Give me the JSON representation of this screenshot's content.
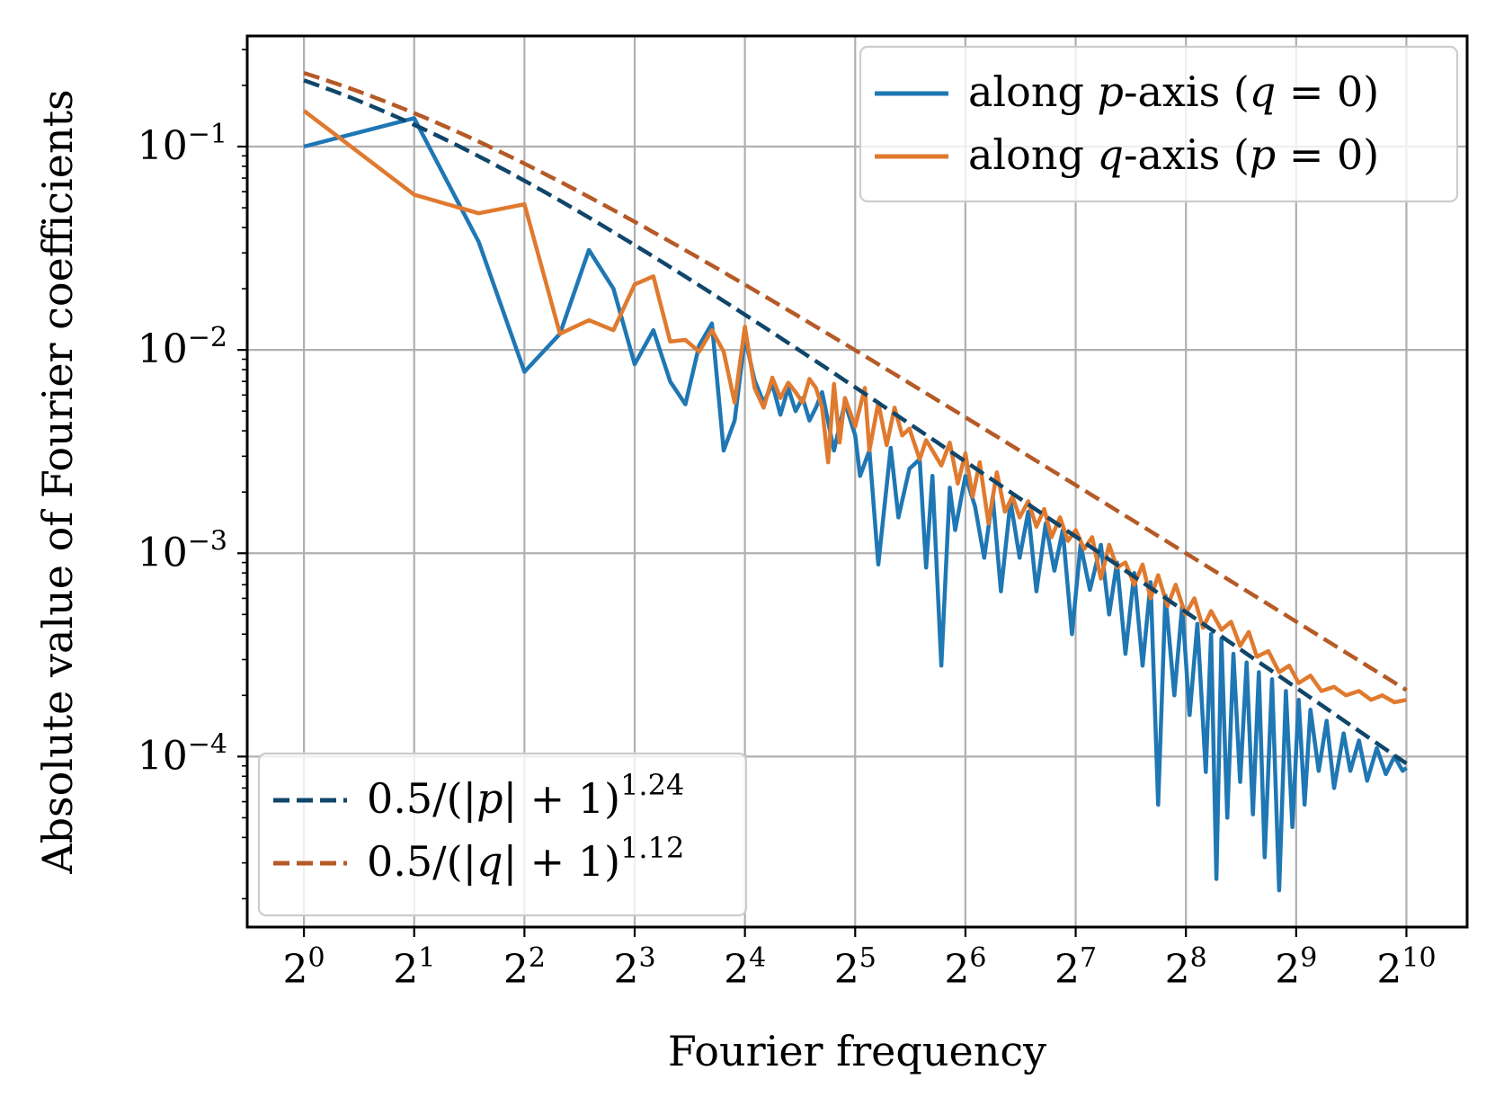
{
  "chart_data": {
    "type": "line",
    "xscale": "log2",
    "yscale": "log10",
    "xlabel": "Fourier frequency",
    "ylabel": "Absolute value of Fourier coefficients",
    "xlim": [
      0.7,
      1500
    ],
    "ylim": [
      1.45e-05,
      0.35
    ],
    "xticks": [
      {
        "base": "2",
        "exp": "0",
        "value": 1
      },
      {
        "base": "2",
        "exp": "1",
        "value": 2
      },
      {
        "base": "2",
        "exp": "2",
        "value": 4
      },
      {
        "base": "2",
        "exp": "3",
        "value": 8
      },
      {
        "base": "2",
        "exp": "4",
        "value": 16
      },
      {
        "base": "2",
        "exp": "5",
        "value": 32
      },
      {
        "base": "2",
        "exp": "6",
        "value": 64
      },
      {
        "base": "2",
        "exp": "7",
        "value": 128
      },
      {
        "base": "2",
        "exp": "8",
        "value": 256
      },
      {
        "base": "2",
        "exp": "9",
        "value": 512
      },
      {
        "base": "2",
        "exp": "10",
        "value": 1024
      }
    ],
    "yticks": [
      {
        "base": "10",
        "exp": "−1",
        "value": 0.1
      },
      {
        "base": "10",
        "exp": "−2",
        "value": 0.01
      },
      {
        "base": "10",
        "exp": "−3",
        "value": 0.001
      },
      {
        "base": "10",
        "exp": "−4",
        "value": 0.0001
      }
    ],
    "grid": true,
    "colors": {
      "blue": "#1f77b4",
      "orange": "#e07a2f",
      "navy": "#10466a",
      "brown": "#b65a26",
      "grid": "#b0b0b0"
    },
    "legends": [
      {
        "placement": "upper right",
        "entries": [
          {
            "text": "along p-axis (q = 0)",
            "parts": [
              "along ",
              "p",
              "-axis (",
              "q",
              " = 0)"
            ],
            "color": "#1f77b4",
            "style": "solid"
          },
          {
            "text": "along q-axis (p = 0)",
            "parts": [
              "along ",
              "q",
              "-axis (",
              "p",
              " = 0)"
            ],
            "color": "#e07a2f",
            "style": "solid"
          }
        ]
      },
      {
        "placement": "lower left",
        "entries": [
          {
            "text": "0.5/(|p| + 1)^1.24",
            "parts": [
              "0.5/(|",
              "p",
              "| + 1)"
            ],
            "sup": "1.24",
            "color": "#10466a",
            "style": "dashed"
          },
          {
            "text": "0.5/(|q| + 1)^1.12",
            "parts": [
              "0.5/(|",
              "q",
              "| + 1)"
            ],
            "sup": "1.12",
            "color": "#b65a26",
            "style": "dashed"
          }
        ]
      }
    ],
    "series": [
      {
        "name": "along p-axis (q = 0)",
        "color": "#1f77b4",
        "style": "solid",
        "points": [
          [
            1,
            0.1
          ],
          [
            2,
            0.138
          ],
          [
            3,
            0.034
          ],
          [
            4,
            0.0078
          ],
          [
            5,
            0.012
          ],
          [
            6,
            0.031
          ],
          [
            7,
            0.02
          ],
          [
            8,
            0.0085
          ],
          [
            9,
            0.0125
          ],
          [
            10,
            0.007
          ],
          [
            11,
            0.0054
          ],
          [
            12,
            0.0105
          ],
          [
            13,
            0.0135
          ],
          [
            14,
            0.0032
          ],
          [
            15,
            0.0045
          ],
          [
            16,
            0.0115
          ],
          [
            17,
            0.0071
          ],
          [
            18,
            0.0055
          ],
          [
            19,
            0.0068
          ],
          [
            20,
            0.0048
          ],
          [
            21,
            0.0065
          ],
          [
            22,
            0.005
          ],
          [
            23,
            0.0058
          ],
          [
            24,
            0.0045
          ],
          [
            25,
            0.0052
          ],
          [
            26,
            0.0062
          ],
          [
            28,
            0.0032
          ],
          [
            30,
            0.0055
          ],
          [
            32,
            0.0038
          ],
          [
            33,
            0.0024
          ],
          [
            35,
            0.0032
          ],
          [
            37,
            0.00088
          ],
          [
            40,
            0.0033
          ],
          [
            42,
            0.0015
          ],
          [
            45,
            0.0026
          ],
          [
            48,
            0.0029
          ],
          [
            50,
            0.00085
          ],
          [
            52,
            0.0024
          ],
          [
            55,
            0.00028
          ],
          [
            58,
            0.0021
          ],
          [
            60,
            0.0013
          ],
          [
            64,
            0.0024
          ],
          [
            68,
            0.0017
          ],
          [
            72,
            0.00095
          ],
          [
            76,
            0.0019
          ],
          [
            80,
            0.00065
          ],
          [
            85,
            0.0018
          ],
          [
            90,
            0.00095
          ],
          [
            95,
            0.0016
          ],
          [
            100,
            0.00065
          ],
          [
            106,
            0.0014
          ],
          [
            112,
            0.00082
          ],
          [
            118,
            0.0013
          ],
          [
            125,
            0.0004
          ],
          [
            132,
            0.0011
          ],
          [
            140,
            0.00066
          ],
          [
            150,
            0.0011
          ],
          [
            158,
            0.0005
          ],
          [
            166,
            0.0009
          ],
          [
            175,
            0.00032
          ],
          [
            185,
            0.0008
          ],
          [
            195,
            0.00028
          ],
          [
            205,
            0.00072
          ],
          [
            215,
            5.8e-05
          ],
          [
            225,
            0.00062
          ],
          [
            238,
            0.0002
          ],
          [
            250,
            0.00055
          ],
          [
            262,
            0.00016
          ],
          [
            275,
            0.00045
          ],
          [
            290,
            8.4e-05
          ],
          [
            300,
            0.0004
          ],
          [
            310,
            2.5e-05
          ],
          [
            320,
            0.00038
          ],
          [
            332,
            5e-05
          ],
          [
            345,
            0.00032
          ],
          [
            360,
            7.5e-05
          ],
          [
            375,
            0.00029
          ],
          [
            390,
            5.2e-05
          ],
          [
            405,
            0.00026
          ],
          [
            420,
            3.2e-05
          ],
          [
            440,
            0.00024
          ],
          [
            460,
            2.2e-05
          ],
          [
            480,
            0.00021
          ],
          [
            500,
            4.5e-05
          ],
          [
            520,
            0.00019
          ],
          [
            540,
            5.8e-05
          ],
          [
            560,
            0.00017
          ],
          [
            590,
            8.5e-05
          ],
          [
            620,
            0.00015
          ],
          [
            650,
            7e-05
          ],
          [
            690,
            0.00013
          ],
          [
            720,
            8.5e-05
          ],
          [
            760,
            0.00012
          ],
          [
            800,
            7.6e-05
          ],
          [
            850,
            0.00011
          ],
          [
            900,
            8.2e-05
          ],
          [
            950,
            0.0001
          ],
          [
            1000,
            8.5e-05
          ],
          [
            1024,
            8.8e-05
          ]
        ]
      },
      {
        "name": "along q-axis (p = 0)",
        "color": "#e07a2f",
        "style": "solid",
        "points": [
          [
            1,
            0.15
          ],
          [
            2,
            0.058
          ],
          [
            3,
            0.047
          ],
          [
            4,
            0.052
          ],
          [
            5,
            0.012
          ],
          [
            6,
            0.014
          ],
          [
            7,
            0.0125
          ],
          [
            8,
            0.021
          ],
          [
            9,
            0.023
          ],
          [
            10,
            0.011
          ],
          [
            11,
            0.0112
          ],
          [
            12,
            0.0098
          ],
          [
            13,
            0.0125
          ],
          [
            14,
            0.0098
          ],
          [
            15,
            0.0055
          ],
          [
            16,
            0.013
          ],
          [
            17,
            0.0065
          ],
          [
            18,
            0.0052
          ],
          [
            19,
            0.0073
          ],
          [
            20,
            0.0058
          ],
          [
            21,
            0.0069
          ],
          [
            22,
            0.0062
          ],
          [
            23,
            0.0055
          ],
          [
            24,
            0.0072
          ],
          [
            25,
            0.0065
          ],
          [
            26,
            0.0052
          ],
          [
            27,
            0.0028
          ],
          [
            28,
            0.0068
          ],
          [
            29,
            0.0035
          ],
          [
            30,
            0.0058
          ],
          [
            32,
            0.0042
          ],
          [
            34,
            0.0065
          ],
          [
            35,
            0.0032
          ],
          [
            37,
            0.0055
          ],
          [
            39,
            0.0034
          ],
          [
            41,
            0.0052
          ],
          [
            43,
            0.0038
          ],
          [
            45,
            0.0041
          ],
          [
            48,
            0.0029
          ],
          [
            50,
            0.0036
          ],
          [
            52,
            0.0032
          ],
          [
            55,
            0.0027
          ],
          [
            58,
            0.0035
          ],
          [
            61,
            0.0022
          ],
          [
            64,
            0.0031
          ],
          [
            67,
            0.0019
          ],
          [
            70,
            0.0028
          ],
          [
            74,
            0.0014
          ],
          [
            78,
            0.0025
          ],
          [
            82,
            0.0016
          ],
          [
            86,
            0.0019
          ],
          [
            90,
            0.0015
          ],
          [
            95,
            0.0018
          ],
          [
            100,
            0.00135
          ],
          [
            105,
            0.00165
          ],
          [
            110,
            0.0012
          ],
          [
            116,
            0.0015
          ],
          [
            122,
            0.00115
          ],
          [
            128,
            0.0013
          ],
          [
            135,
            0.00105
          ],
          [
            142,
            0.0012
          ],
          [
            150,
            0.00075
          ],
          [
            158,
            0.0011
          ],
          [
            166,
            0.00085
          ],
          [
            175,
            0.0009
          ],
          [
            185,
            0.0007
          ],
          [
            195,
            0.00088
          ],
          [
            205,
            0.0006
          ],
          [
            215,
            0.00078
          ],
          [
            228,
            0.00055
          ],
          [
            240,
            0.0007
          ],
          [
            255,
            0.0005
          ],
          [
            270,
            0.0006
          ],
          [
            285,
            0.00043
          ],
          [
            300,
            0.00052
          ],
          [
            320,
            0.00042
          ],
          [
            340,
            0.00046
          ],
          [
            360,
            0.00035
          ],
          [
            380,
            0.00041
          ],
          [
            400,
            0.00031
          ],
          [
            430,
            0.00033
          ],
          [
            460,
            0.00026
          ],
          [
            490,
            0.00028
          ],
          [
            520,
            0.00023
          ],
          [
            560,
            0.00025
          ],
          [
            600,
            0.00021
          ],
          [
            650,
            0.00022
          ],
          [
            700,
            0.0002
          ],
          [
            760,
            0.00021
          ],
          [
            820,
            0.00019
          ],
          [
            880,
            0.0002
          ],
          [
            950,
            0.000185
          ],
          [
            1024,
            0.00019
          ]
        ]
      },
      {
        "name": "0.5/(|p| + 1)^1.24",
        "color": "#10466a",
        "style": "dashed",
        "formula": {
          "a": 0.5,
          "k": 1.24
        },
        "x_range": [
          1,
          1024
        ]
      },
      {
        "name": "0.5/(|q| + 1)^1.12",
        "color": "#b65a26",
        "style": "dashed",
        "formula": {
          "a": 0.5,
          "k": 1.12
        },
        "x_range": [
          1,
          1024
        ]
      }
    ]
  }
}
